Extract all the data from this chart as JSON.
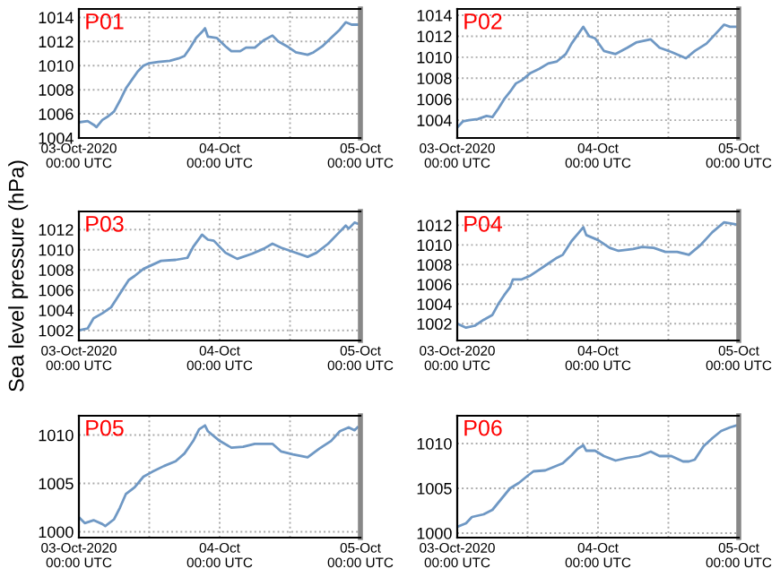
{
  "chart_data": [
    {
      "type": "line",
      "title": "P01",
      "xlim": [
        "2020-10-03T00:00",
        "2020-10-05T00:00"
      ],
      "ylim": [
        1004,
        1014.7
      ],
      "yticks": [
        1004,
        1006,
        1008,
        1010,
        1012,
        1014
      ],
      "xticks": [
        {
          "value": "2020-10-03T00:00",
          "label": "03-Oct-2020\n00:00 UTC"
        },
        {
          "value": "2020-10-03T12:00",
          "label": null
        },
        {
          "value": "2020-10-04T00:00",
          "label": "04-Oct\n00:00 UTC"
        },
        {
          "value": "2020-10-04T12:00",
          "label": null
        },
        {
          "value": "2020-10-05T00:00",
          "label": "05-Oct\n00:00 UTC"
        }
      ],
      "grid": true,
      "series": [
        {
          "color": "#6f98c4",
          "x": [
            "2020-10-03T00:00",
            "2020-10-03T01:30",
            "2020-10-03T02:30",
            "2020-10-03T03:00",
            "2020-10-03T04:00",
            "2020-10-03T05:00",
            "2020-10-03T06:00",
            "2020-10-03T07:00",
            "2020-10-03T08:00",
            "2020-10-03T09:00",
            "2020-10-03T10:00",
            "2020-10-03T11:00",
            "2020-10-03T12:00",
            "2020-10-03T13:30",
            "2020-10-03T15:30",
            "2020-10-03T17:00",
            "2020-10-03T18:00",
            "2020-10-03T19:00",
            "2020-10-03T20:00",
            "2020-10-03T21:00",
            "2020-10-03T21:30",
            "2020-10-03T22:00",
            "2020-10-03T23:30",
            "2020-10-04T01:00",
            "2020-10-04T02:00",
            "2020-10-04T03:30",
            "2020-10-04T04:30",
            "2020-10-04T06:00",
            "2020-10-04T07:30",
            "2020-10-04T09:00",
            "2020-10-04T10:00",
            "2020-10-04T11:30",
            "2020-10-04T13:00",
            "2020-10-04T15:00",
            "2020-10-04T16:00",
            "2020-10-04T17:30",
            "2020-10-04T19:00",
            "2020-10-04T20:30",
            "2020-10-04T21:30",
            "2020-10-04T22:30",
            "2020-10-04T23:30"
          ],
          "values": [
            1005.3,
            1005.4,
            1005.1,
            1004.9,
            1005.5,
            1005.8,
            1006.2,
            1007.1,
            1008.1,
            1008.8,
            1009.5,
            1010.0,
            1010.2,
            1010.3,
            1010.4,
            1010.6,
            1010.8,
            1011.5,
            1012.3,
            1012.8,
            1013.1,
            1012.4,
            1012.3,
            1011.6,
            1011.2,
            1011.2,
            1011.5,
            1011.5,
            1012.1,
            1012.5,
            1012.0,
            1011.6,
            1011.1,
            1010.9,
            1011.1,
            1011.6,
            1012.3,
            1013.0,
            1013.6,
            1013.4,
            1013.4
          ]
        }
      ]
    },
    {
      "type": "line",
      "title": "P02",
      "xlim": [
        "2020-10-03T00:00",
        "2020-10-05T00:00"
      ],
      "ylim": [
        1002.3,
        1014.6
      ],
      "yticks": [
        1004,
        1006,
        1008,
        1010,
        1012,
        1014
      ],
      "xticks": [
        {
          "value": "2020-10-03T00:00",
          "label": "03-Oct-2020\n00:00 UTC"
        },
        {
          "value": "2020-10-03T12:00",
          "label": null
        },
        {
          "value": "2020-10-04T00:00",
          "label": "04-Oct\n00:00 UTC"
        },
        {
          "value": "2020-10-04T12:00",
          "label": null
        },
        {
          "value": "2020-10-05T00:00",
          "label": "05-Oct\n00:00 UTC"
        }
      ],
      "grid": true,
      "series": [
        {
          "color": "#6f98c4",
          "x": [
            "2020-10-03T00:00",
            "2020-10-03T01:00",
            "2020-10-03T02:00",
            "2020-10-03T03:30",
            "2020-10-03T05:00",
            "2020-10-03T06:00",
            "2020-10-03T07:00",
            "2020-10-03T08:00",
            "2020-10-03T09:00",
            "2020-10-03T10:00",
            "2020-10-03T11:00",
            "2020-10-03T12:30",
            "2020-10-03T14:00",
            "2020-10-03T15:30",
            "2020-10-03T17:00",
            "2020-10-03T18:30",
            "2020-10-03T19:30",
            "2020-10-03T21:30",
            "2020-10-03T22:30",
            "2020-10-03T23:30",
            "2020-10-04T01:00",
            "2020-10-04T03:00",
            "2020-10-04T05:00",
            "2020-10-04T06:30",
            "2020-10-04T09:00",
            "2020-10-04T10:30",
            "2020-10-04T12:30",
            "2020-10-04T15:00",
            "2020-10-04T16:30",
            "2020-10-04T18:30",
            "2020-10-04T20:00",
            "2020-10-04T21:30",
            "2020-10-04T22:30",
            "2020-10-04T23:30"
          ],
          "values": [
            1003.3,
            1003.9,
            1004.0,
            1004.1,
            1004.4,
            1004.3,
            1005.1,
            1006.0,
            1006.7,
            1007.5,
            1007.8,
            1008.5,
            1008.9,
            1009.4,
            1009.6,
            1010.3,
            1011.3,
            1012.9,
            1012.0,
            1011.8,
            1010.6,
            1010.3,
            1010.9,
            1011.4,
            1011.7,
            1010.9,
            1010.5,
            1009.9,
            1010.6,
            1011.3,
            1012.2,
            1013.1,
            1012.9,
            1012.9
          ]
        }
      ]
    },
    {
      "type": "line",
      "title": "P03",
      "ylabel": "Sea level pressure (hPa)",
      "xlim": [
        "2020-10-03T00:00",
        "2020-10-05T00:00"
      ],
      "ylim": [
        1001.0,
        1013.8
      ],
      "yticks": [
        1002,
        1004,
        1006,
        1008,
        1010,
        1012
      ],
      "xticks": [
        {
          "value": "2020-10-03T00:00",
          "label": "03-Oct-2020\n00:00 UTC"
        },
        {
          "value": "2020-10-03T12:00",
          "label": null
        },
        {
          "value": "2020-10-04T00:00",
          "label": "04-Oct\n00:00 UTC"
        },
        {
          "value": "2020-10-04T12:00",
          "label": null
        },
        {
          "value": "2020-10-05T00:00",
          "label": "05-Oct\n00:00 UTC"
        }
      ],
      "grid": true,
      "series": [
        {
          "color": "#6f98c4",
          "x": [
            "2020-10-03T00:00",
            "2020-10-03T01:30",
            "2020-10-03T02:30",
            "2020-10-03T04:00",
            "2020-10-03T05:30",
            "2020-10-03T06:30",
            "2020-10-03T07:30",
            "2020-10-03T08:30",
            "2020-10-03T09:30",
            "2020-10-03T11:00",
            "2020-10-03T12:30",
            "2020-10-03T14:00",
            "2020-10-03T16:30",
            "2020-10-03T18:30",
            "2020-10-03T19:30",
            "2020-10-03T21:00",
            "2020-10-03T22:00",
            "2020-10-03T23:00",
            "2020-10-04T01:00",
            "2020-10-04T03:00",
            "2020-10-04T05:30",
            "2020-10-04T07:30",
            "2020-10-04T09:00",
            "2020-10-04T10:30",
            "2020-10-04T12:30",
            "2020-10-04T15:00",
            "2020-10-04T16:30",
            "2020-10-04T18:30",
            "2020-10-04T20:00",
            "2020-10-04T21:30",
            "2020-10-04T22:00",
            "2020-10-04T23:00",
            "2020-10-04T23:30"
          ],
          "values": [
            1002.0,
            1002.2,
            1003.2,
            1003.7,
            1004.3,
            1005.2,
            1006.1,
            1007.0,
            1007.4,
            1008.1,
            1008.5,
            1008.9,
            1009.0,
            1009.2,
            1010.3,
            1011.5,
            1011.0,
            1010.9,
            1009.7,
            1009.1,
            1009.6,
            1010.1,
            1010.6,
            1010.2,
            1009.8,
            1009.3,
            1009.7,
            1010.6,
            1011.5,
            1012.4,
            1012.1,
            1012.7,
            1012.6
          ]
        }
      ]
    },
    {
      "type": "line",
      "title": "P04",
      "xlim": [
        "2020-10-03T00:00",
        "2020-10-05T00:00"
      ],
      "ylim": [
        1000.3,
        1013.4
      ],
      "yticks": [
        1002,
        1004,
        1006,
        1008,
        1010,
        1012
      ],
      "xticks": [
        {
          "value": "2020-10-03T00:00",
          "label": "03-Oct-2020\n00:00 UTC"
        },
        {
          "value": "2020-10-03T12:00",
          "label": null
        },
        {
          "value": "2020-10-04T00:00",
          "label": "04-Oct\n00:00 UTC"
        },
        {
          "value": "2020-10-04T12:00",
          "label": null
        },
        {
          "value": "2020-10-05T00:00",
          "label": "05-Oct\n00:00 UTC"
        }
      ],
      "grid": true,
      "series": [
        {
          "color": "#6f98c4",
          "x": [
            "2020-10-03T00:00",
            "2020-10-03T01:30",
            "2020-10-03T03:00",
            "2020-10-03T04:30",
            "2020-10-03T06:00",
            "2020-10-03T07:00",
            "2020-10-03T08:00",
            "2020-10-03T09:00",
            "2020-10-03T09:30",
            "2020-10-03T11:00",
            "2020-10-03T12:30",
            "2020-10-03T14:00",
            "2020-10-03T15:30",
            "2020-10-03T17:00",
            "2020-10-03T18:00",
            "2020-10-03T19:30",
            "2020-10-03T20:30",
            "2020-10-03T21:30",
            "2020-10-03T22:00",
            "2020-10-04T00:00",
            "2020-10-04T02:00",
            "2020-10-04T03:30",
            "2020-10-04T06:00",
            "2020-10-04T07:30",
            "2020-10-04T09:30",
            "2020-10-04T11:30",
            "2020-10-04T13:30",
            "2020-10-04T15:30",
            "2020-10-04T17:30",
            "2020-10-04T19:30",
            "2020-10-04T21:30",
            "2020-10-04T23:30"
          ],
          "values": [
            1002.0,
            1001.6,
            1001.8,
            1002.4,
            1002.9,
            1004.0,
            1004.9,
            1005.7,
            1006.5,
            1006.5,
            1006.9,
            1007.5,
            1008.1,
            1008.7,
            1009.0,
            1010.4,
            1011.1,
            1011.8,
            1011.0,
            1010.5,
            1009.7,
            1009.4,
            1009.6,
            1009.8,
            1009.7,
            1009.3,
            1009.3,
            1009.0,
            1010.0,
            1011.3,
            1012.3,
            1012.1
          ]
        }
      ]
    },
    {
      "type": "line",
      "title": "P05",
      "xlim": [
        "2020-10-03T00:00",
        "2020-10-05T00:00"
      ],
      "ylim": [
        999.4,
        1012.0
      ],
      "yticks": [
        1000,
        1005,
        1010
      ],
      "xticks": [
        {
          "value": "2020-10-03T00:00",
          "label": "03-Oct-2020\n00:00 UTC"
        },
        {
          "value": "2020-10-03T12:00",
          "label": null
        },
        {
          "value": "2020-10-04T00:00",
          "label": "04-Oct\n00:00 UTC"
        },
        {
          "value": "2020-10-04T12:00",
          "label": null
        },
        {
          "value": "2020-10-05T00:00",
          "label": "05-Oct\n00:00 UTC"
        }
      ],
      "grid": true,
      "series": [
        {
          "color": "#6f98c4",
          "x": [
            "2020-10-03T00:00",
            "2020-10-03T01:00",
            "2020-10-03T02:30",
            "2020-10-03T04:00",
            "2020-10-03T04:30",
            "2020-10-03T06:00",
            "2020-10-03T07:00",
            "2020-10-03T08:00",
            "2020-10-03T09:30",
            "2020-10-03T11:00",
            "2020-10-03T12:30",
            "2020-10-03T14:30",
            "2020-10-03T16:30",
            "2020-10-03T18:00",
            "2020-10-03T19:30",
            "2020-10-03T20:30",
            "2020-10-03T21:30",
            "2020-10-03T22:00",
            "2020-10-04T00:00",
            "2020-10-04T02:00",
            "2020-10-04T04:00",
            "2020-10-04T06:00",
            "2020-10-04T09:00",
            "2020-10-04T10:30",
            "2020-10-04T12:30",
            "2020-10-04T15:00",
            "2020-10-04T17:00",
            "2020-10-04T19:00",
            "2020-10-04T20:30",
            "2020-10-04T22:00",
            "2020-10-04T23:00",
            "2020-10-04T23:30"
          ],
          "values": [
            1001.5,
            1000.9,
            1001.2,
            1000.8,
            1000.6,
            1001.3,
            1002.5,
            1003.9,
            1004.6,
            1005.7,
            1006.2,
            1006.8,
            1007.3,
            1008.1,
            1009.4,
            1010.6,
            1011.0,
            1010.4,
            1009.4,
            1008.7,
            1008.8,
            1009.1,
            1009.1,
            1008.3,
            1008.0,
            1007.7,
            1008.6,
            1009.4,
            1010.4,
            1010.8,
            1010.5,
            1010.8
          ]
        }
      ]
    },
    {
      "type": "line",
      "title": "P06",
      "xlim": [
        "2020-10-03T00:00",
        "2020-10-05T00:00"
      ],
      "ylim": [
        999.5,
        1013.1
      ],
      "yticks": [
        1000,
        1005,
        1010
      ],
      "xticks": [
        {
          "value": "2020-10-03T00:00",
          "label": "03-Oct-2020\n00:00 UTC"
        },
        {
          "value": "2020-10-03T12:00",
          "label": null
        },
        {
          "value": "2020-10-04T00:00",
          "label": "04-Oct\n00:00 UTC"
        },
        {
          "value": "2020-10-04T12:00",
          "label": null
        },
        {
          "value": "2020-10-05T00:00",
          "label": "05-Oct\n00:00 UTC"
        }
      ],
      "grid": true,
      "series": [
        {
          "color": "#6f98c4",
          "x": [
            "2020-10-03T00:00",
            "2020-10-03T01:30",
            "2020-10-03T02:30",
            "2020-10-03T04:30",
            "2020-10-03T06:00",
            "2020-10-03T07:30",
            "2020-10-03T09:00",
            "2020-10-03T10:30",
            "2020-10-03T12:00",
            "2020-10-03T13:00",
            "2020-10-03T15:00",
            "2020-10-03T16:30",
            "2020-10-03T18:00",
            "2020-10-03T19:30",
            "2020-10-03T20:30",
            "2020-10-03T21:30",
            "2020-10-03T22:00",
            "2020-10-03T23:30",
            "2020-10-04T01:00",
            "2020-10-04T03:00",
            "2020-10-04T05:00",
            "2020-10-04T07:00",
            "2020-10-04T09:00",
            "2020-10-04T10:30",
            "2020-10-04T12:30",
            "2020-10-04T14:30",
            "2020-10-04T15:30",
            "2020-10-04T16:30",
            "2020-10-04T18:00",
            "2020-10-04T19:30",
            "2020-10-04T21:00",
            "2020-10-04T22:30",
            "2020-10-04T23:30"
          ],
          "values": [
            1000.7,
            1001.1,
            1001.8,
            1002.1,
            1002.6,
            1003.8,
            1005.0,
            1005.6,
            1006.4,
            1006.9,
            1007.0,
            1007.4,
            1007.8,
            1008.7,
            1009.4,
            1009.8,
            1009.2,
            1009.2,
            1008.6,
            1008.1,
            1008.4,
            1008.6,
            1009.1,
            1008.6,
            1008.6,
            1008.0,
            1008.0,
            1008.2,
            1009.7,
            1010.6,
            1011.4,
            1011.8,
            1012.0
          ]
        }
      ]
    }
  ]
}
